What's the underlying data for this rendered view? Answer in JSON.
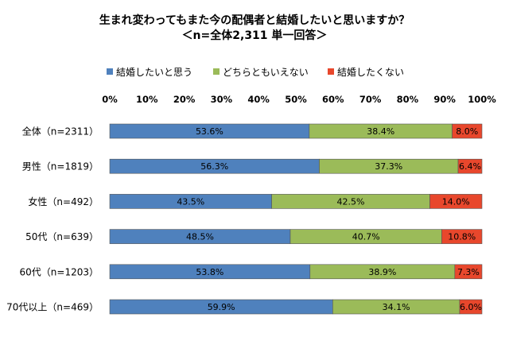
{
  "chart_data": {
    "type": "bar",
    "stacked": true,
    "orientation": "horizontal",
    "title": "生まれ変わってもまた今の配偶者と結婚したいと思いますか？",
    "subtitle": "＜n=全体2,311 単一回答＞",
    "categories": [
      "全体（n=2311）",
      "男性（n=1819）",
      "女性（n=492）",
      "50代（n=639）",
      "60代（n=1203）",
      "70代以上（n=469）"
    ],
    "series": [
      {
        "name": "結婚したいと思う",
        "color": "#4f81bd",
        "values": [
          53.6,
          56.3,
          43.5,
          48.5,
          53.8,
          59.9
        ],
        "labels": [
          "53.6%",
          "56.3%",
          "43.5%",
          "48.5%",
          "53.8%",
          "59.9%"
        ]
      },
      {
        "name": "どちらともいえない",
        "color": "#9bbb59",
        "values": [
          38.4,
          37.3,
          42.5,
          40.7,
          38.9,
          34.1
        ],
        "labels": [
          "38.4%",
          "37.3%",
          "42.5%",
          "40.7%",
          "38.9%",
          "34.1%"
        ]
      },
      {
        "name": "結婚したくない",
        "color": "#e8472c",
        "values": [
          8.0,
          6.4,
          14.0,
          10.8,
          7.3,
          6.0
        ],
        "labels": [
          "8.0%",
          "6.4%",
          "14.0%",
          "10.8%",
          "7.3%",
          "6.0%"
        ]
      }
    ],
    "xlim": [
      0,
      100
    ],
    "xticks": [
      "0%",
      "10%",
      "20%",
      "30%",
      "40%",
      "50%",
      "60%",
      "70%",
      "80%",
      "90%",
      "100%"
    ],
    "legend_position": "top",
    "grid": false
  }
}
